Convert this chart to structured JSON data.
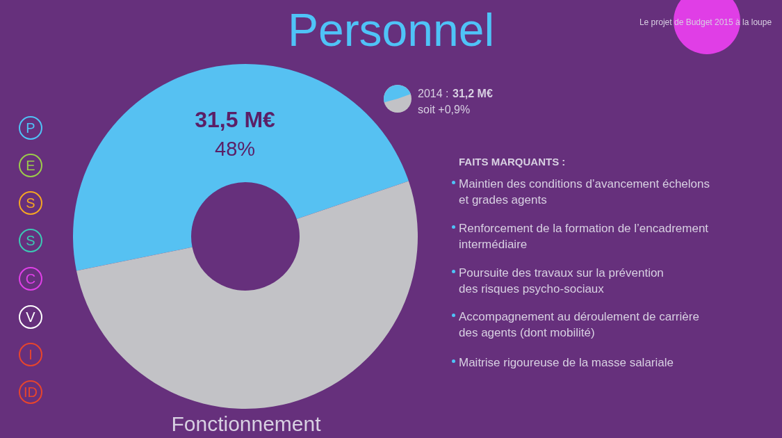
{
  "chart_data": {
    "type": "donut",
    "title": "Personnel",
    "subtitle": "Le projet de Budget 2015 à la loupe",
    "categories": [
      null,
      null
    ],
    "values": [
      48,
      52
    ],
    "colors": [
      "#56c1f2",
      "#c2c2c6"
    ],
    "value_labels": [
      "31,5 M€\n48%",
      null
    ],
    "annotations": [
      "2014 :",
      "31,2 M€",
      "soit +0,9%",
      "FAITS MARQUANTS :",
      "Maintien des conditions d’avancement échelons\net grades agents",
      "Renforcement de la formation de l’encadrement\nintermédiaire",
      "Poursuite des travaux sur la prévention\ndes risques psycho-sociaux",
      "Accompagnement au déroulement de carrière\ndes agents (dont mobilité)",
      "Maitrise rigoureuse de la masse salariale",
      "Fonctionnement",
      "P",
      "E",
      "S",
      "S",
      "C",
      "V",
      "I",
      "ID"
    ]
  }
}
